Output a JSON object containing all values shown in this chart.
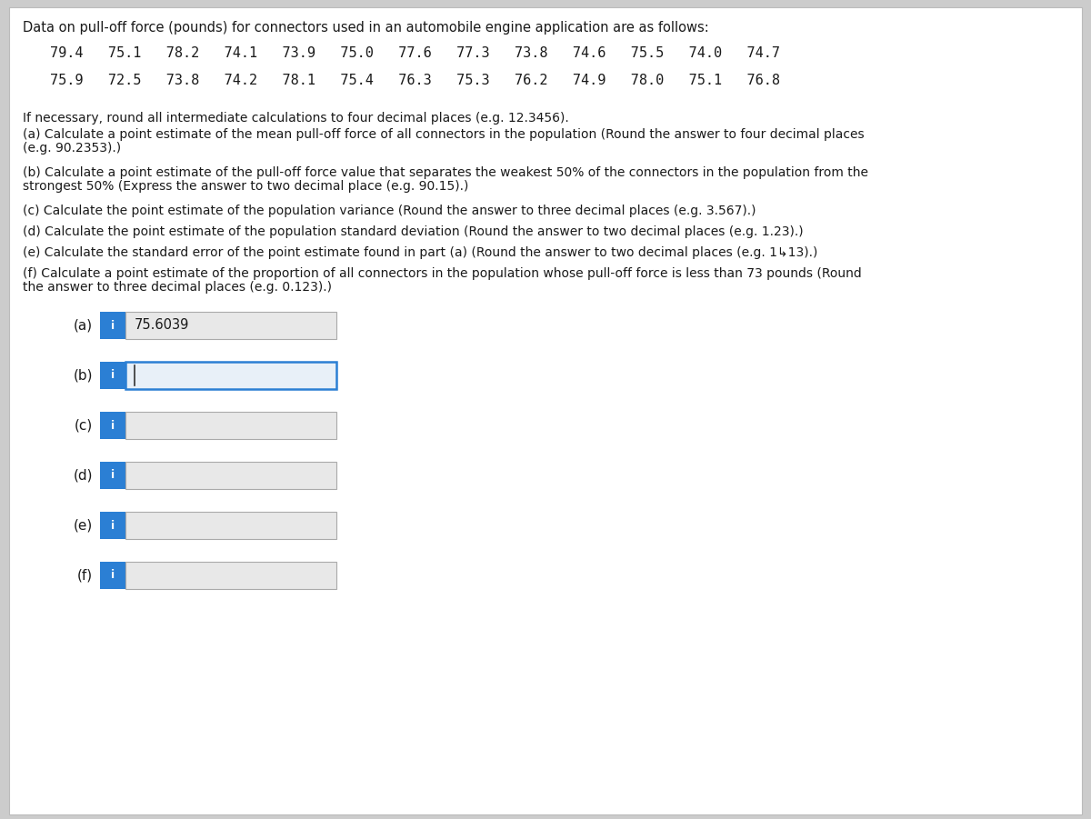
{
  "title_text": "Data on pull-off force (pounds) for connectors used in an automobile engine application are as follows:",
  "data_row1": "79.4   75.1   78.2   74.1   73.9   75.0   77.6   77.3   73.8   74.6   75.5   74.0   74.7",
  "data_row2": "75.9   72.5   73.8   74.2   78.1   75.4   76.3   75.3   76.2   74.9   78.0   75.1   76.8",
  "instructions": "If necessary, round all intermediate calculations to four decimal places (e.g. 12.3456).",
  "q_a_line1": "(a) Calculate a point estimate of the mean pull-off force of all connectors in the population (Round the answer to four decimal places",
  "q_a_line2": "(e.g. 90.2353).)",
  "q_b_line1": "(b) Calculate a point estimate of the pull-off force value that separates the weakest 50% of the connectors in the population from the",
  "q_b_line2": "strongest 50% (Express the answer to two decimal place (e.g. 90.15).)",
  "q_c": "(c) Calculate the point estimate of the population variance (Round the answer to three decimal places (e.g. 3.567).)",
  "q_d": "(d) Calculate the point estimate of the population standard deviation (Round the answer to two decimal places (e.g. 1.23).)",
  "q_e": "(e) Calculate the standard error of the point estimate found in part (a) (Round the answer to two decimal places (e.g. 1↳13).)",
  "q_f_line1": "(f) Calculate a point estimate of the proportion of all connectors in the population whose pull-off force is less than 73 pounds (Round",
  "q_f_line2": "the answer to three decimal places (e.g. 0.123).)",
  "answer_a": "75.6039",
  "bg_color": "#cccccc",
  "panel_color": "#ffffff",
  "box_fill_color": "#e8e8e8",
  "box_border_color": "#aaaaaa",
  "btn_color": "#2b7fd4",
  "text_color": "#1a1a1a",
  "box_active_border": "#2b7fd4",
  "active_fill": "#e8f0f8"
}
